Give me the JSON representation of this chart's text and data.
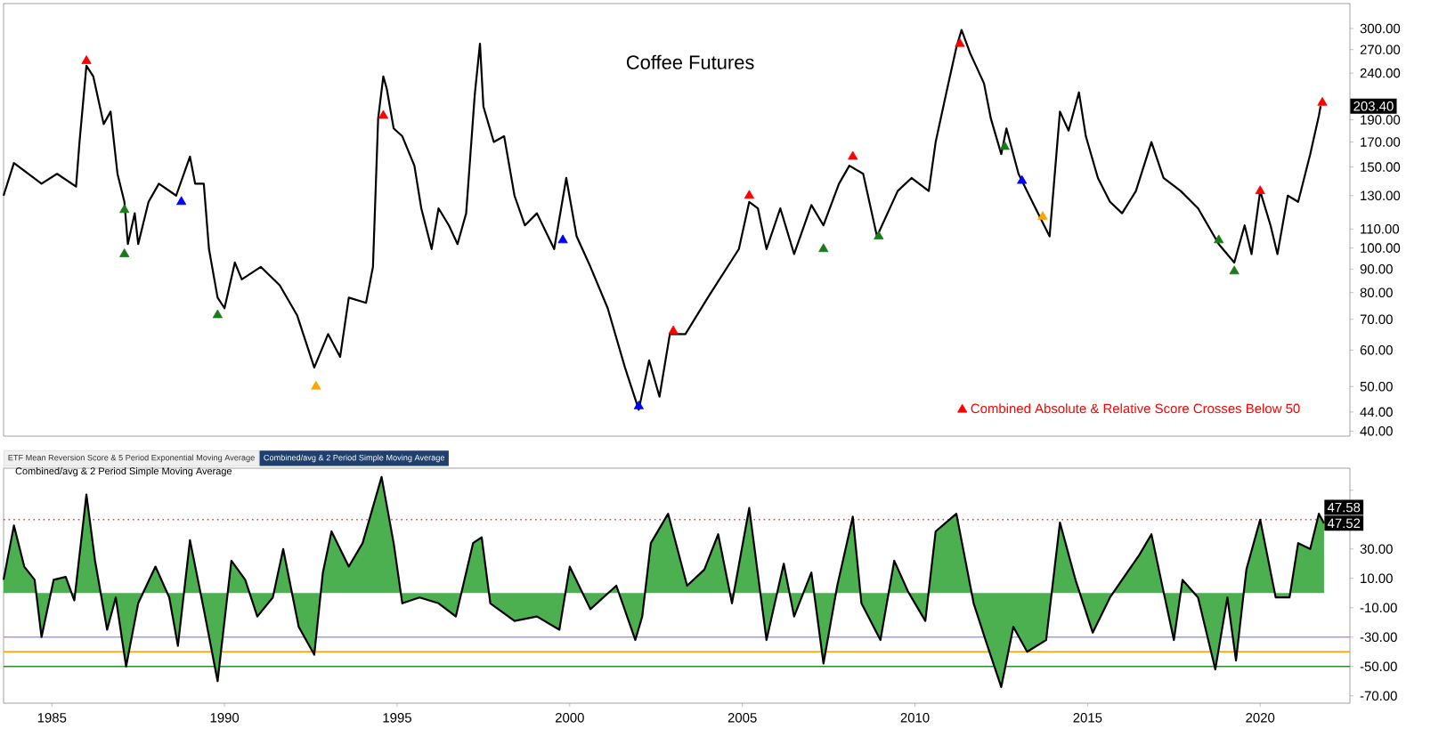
{
  "chart_data": [
    {
      "type": "line",
      "title": "Coffee Futures",
      "log": true,
      "xlim": [
        1983.6,
        2022.6
      ],
      "ylim": [
        39,
        340
      ],
      "tick_labels": "y",
      "legend": "bottom right",
      "yticks": [
        {
          "value": 300,
          "label": "300.00"
        },
        {
          "value": 270,
          "label": "270.00"
        },
        {
          "value": 240,
          "label": "240.00"
        },
        {
          "value": 210,
          "label": null
        },
        {
          "value": 190,
          "label": "190.00"
        },
        {
          "value": 170,
          "label": "170.00"
        },
        {
          "value": 150,
          "label": "150.00"
        },
        {
          "value": 130,
          "label": "130.00"
        },
        {
          "value": 110,
          "label": "110.00"
        },
        {
          "value": 100,
          "label": "100.00"
        },
        {
          "value": 90,
          "label": "90.00"
        },
        {
          "value": 80,
          "label": "80.00"
        },
        {
          "value": 70,
          "label": "70.00"
        },
        {
          "value": 60,
          "label": "60.00"
        },
        {
          "value": 50,
          "label": "50.00"
        },
        {
          "value": 44,
          "label": "44.00"
        },
        {
          "value": 40,
          "label": "40.00"
        }
      ],
      "annotations": [
        {
          "text": "203.40",
          "y": 203.4
        }
      ],
      "x": [
        1983.6,
        1983.9,
        1984.7,
        1985.15,
        1985.7,
        1985.8,
        1986.0,
        1986.2,
        1986.5,
        1986.7,
        1986.9,
        1987.1,
        1987.2,
        1987.4,
        1987.5,
        1987.8,
        1988.1,
        1988.6,
        1989.0,
        1989.15,
        1989.4,
        1989.55,
        1989.8,
        1990.0,
        1990.3,
        1990.5,
        1991.05,
        1991.6,
        1992.1,
        1992.6,
        1993.0,
        1993.35,
        1993.6,
        1994.1,
        1994.3,
        1994.45,
        1994.6,
        1994.7,
        1994.9,
        1995.15,
        1995.5,
        1995.7,
        1996.0,
        1996.2,
        1996.5,
        1996.75,
        1997.0,
        1997.25,
        1997.4,
        1997.5,
        1997.8,
        1998.1,
        1998.4,
        1998.7,
        1999.05,
        1999.55,
        1999.9,
        2000.2,
        2000.6,
        2001.1,
        2001.6,
        2002.0,
        2002.3,
        2002.6,
        2002.9,
        2003.35,
        2004.0,
        2004.9,
        2005.2,
        2005.45,
        2005.7,
        2006.1,
        2006.5,
        2007.0,
        2007.35,
        2007.8,
        2008.1,
        2008.5,
        2008.9,
        2009.5,
        2009.9,
        2010.4,
        2010.6,
        2010.9,
        2011.2,
        2011.35,
        2011.6,
        2012.0,
        2012.2,
        2012.5,
        2012.65,
        2013.0,
        2013.4,
        2013.9,
        2014.2,
        2014.45,
        2014.75,
        2014.95,
        2015.3,
        2015.65,
        2016.0,
        2016.4,
        2016.85,
        2017.2,
        2017.7,
        2018.2,
        2018.8,
        2019.25,
        2019.55,
        2019.75,
        2020.0,
        2020.3,
        2020.5,
        2020.8,
        2021.1,
        2021.45,
        2021.7,
        2021.75
      ],
      "series": [
        {
          "color": "#000000",
          "values": [
            130,
            153,
            138,
            145,
            136,
            170,
            249,
            236,
            186,
            198,
            145,
            126,
            102,
            119,
            102,
            126,
            138,
            130,
            158,
            138,
            138,
            99.5,
            78,
            74,
            93,
            85.5,
            91,
            83,
            71.5,
            55,
            65,
            58,
            78,
            76,
            91,
            191,
            236,
            222,
            182,
            175,
            151,
            122,
            99.5,
            122,
            112,
            102,
            119,
            216,
            278,
            203,
            170,
            175,
            130,
            112,
            119,
            99.5,
            142,
            106,
            91,
            74,
            55,
            44.5,
            57,
            47.5,
            65,
            65,
            78,
            99.5,
            126,
            122,
            99.5,
            122,
            97,
            124,
            112,
            138,
            151,
            145,
            106,
            133,
            142,
            133,
            170,
            216,
            273,
            298,
            265,
            228,
            191,
            160,
            182,
            145,
            126,
            106,
            198,
            180,
            218,
            175,
            142,
            126,
            119,
            133,
            170,
            142,
            133,
            122,
            102,
            93,
            112,
            97,
            133,
            112,
            97,
            130,
            126,
            160,
            194,
            203.4
          ]
        },
        {
          "type": "scatter",
          "name": "Combined Absolute & Relative Score Crosses Below 50",
          "color": "#ff0000",
          "marker": "triangle",
          "x": [
            1986.0,
            1994.6,
            2003.0,
            2005.2,
            2008.2,
            2011.3,
            2020.0,
            2021.8
          ],
          "values": [
            255,
            194,
            66,
            130,
            158,
            278,
            133,
            207
          ]
        },
        {
          "type": "scatter",
          "color": "#1b7a1b",
          "marker": "triangle",
          "x": [
            1987.1,
            1987.1,
            1989.8,
            2007.35,
            2008.95,
            2012.6,
            2018.8,
            2019.25
          ],
          "values": [
            121,
            97,
            71.5,
            99.5,
            106,
            166,
            104,
            89
          ]
        },
        {
          "type": "scatter",
          "color": "#0000ff",
          "marker": "triangle",
          "x": [
            1988.75,
            1999.8,
            2002.0,
            2013.1
          ],
          "values": [
            126,
            104,
            45.3,
            140
          ]
        },
        {
          "type": "scatter",
          "color": "#ffa500",
          "marker": "triangle",
          "x": [
            1992.65,
            2013.7
          ],
          "values": [
            50,
            117
          ]
        }
      ]
    },
    {
      "type": "area",
      "title": "Combined/avg & 2 Period Simple Moving Average",
      "xlim": [
        1983.6,
        2022.6
      ],
      "ylim": [
        -75,
        85
      ],
      "xticks": [
        1985,
        1990,
        1995,
        2000,
        2005,
        2010,
        2015,
        2020
      ],
      "yticks": [
        {
          "value": 70,
          "label": null
        },
        {
          "value": 50,
          "label": null
        },
        {
          "value": 30,
          "label": "30.00"
        },
        {
          "value": 10,
          "label": "10.00"
        },
        {
          "value": -10,
          "label": "-10.00"
        },
        {
          "value": -30,
          "label": "-30.00"
        },
        {
          "value": -50,
          "label": "-50.00"
        },
        {
          "value": -70,
          "label": "-70.00"
        }
      ],
      "annotations": [
        "ETF Mean Reversion Score & 5 Period Exponential Moving Average",
        "Combined/avg & 2 Period Simple Moving Average",
        "47.58"
      ],
      "ref_lines": [
        {
          "axis": "y",
          "value": 50,
          "color": "#ff3333",
          "line_style": "dotted"
        },
        {
          "axis": "y",
          "value": -30,
          "color": "#9999ff"
        },
        {
          "axis": "y",
          "value": -40,
          "color": "#ff9900"
        },
        {
          "axis": "y",
          "value": -50,
          "color": "#2e8b2e"
        }
      ],
      "x": [
        1983.6,
        1983.9,
        1984.2,
        1984.5,
        1984.7,
        1985.05,
        1985.4,
        1985.65,
        1986.0,
        1986.25,
        1986.6,
        1986.85,
        1987.15,
        1987.5,
        1988.0,
        1988.4,
        1988.65,
        1989.0,
        1989.4,
        1989.8,
        1990.2,
        1990.6,
        1990.95,
        1991.4,
        1991.7,
        1992.15,
        1992.6,
        1992.85,
        1993.1,
        1993.6,
        1994.0,
        1994.55,
        1994.9,
        1995.15,
        1995.65,
        1996.2,
        1996.7,
        1997.2,
        1997.45,
        1997.7,
        1998.4,
        1999.05,
        1999.7,
        2000.0,
        2000.6,
        2001.35,
        2001.9,
        2002.1,
        2002.35,
        2002.85,
        2003.4,
        2003.9,
        2004.3,
        2004.7,
        2005.2,
        2005.7,
        2006.2,
        2006.5,
        2007.0,
        2007.35,
        2007.75,
        2008.2,
        2008.45,
        2009.0,
        2009.4,
        2009.8,
        2010.3,
        2010.6,
        2011.2,
        2011.7,
        2012.1,
        2012.5,
        2012.85,
        2013.25,
        2013.8,
        2014.2,
        2014.65,
        2015.15,
        2015.65,
        2016.0,
        2016.5,
        2016.85,
        2017.2,
        2017.5,
        2017.75,
        2018.2,
        2018.7,
        2019.05,
        2019.3,
        2019.6,
        2020.0,
        2020.45,
        2020.85,
        2021.1,
        2021.45,
        2021.7,
        2021.85
      ],
      "series": [
        {
          "color": "#4caf50",
          "value_labels": [
            null,
            null,
            null,
            null,
            null,
            null,
            null,
            null,
            null,
            null,
            null,
            null,
            null,
            null,
            null,
            null,
            null,
            null,
            null,
            null,
            null,
            null,
            null,
            null,
            null,
            null,
            null,
            null,
            null,
            null,
            null,
            null,
            null,
            null,
            null,
            null,
            null,
            null,
            null,
            null,
            null,
            null,
            null,
            null,
            null,
            null,
            null,
            null,
            null,
            null,
            null,
            null,
            null,
            null,
            null,
            null,
            null,
            null,
            null,
            null,
            null,
            null,
            null,
            null,
            null,
            null,
            null,
            null,
            null,
            null,
            null,
            null,
            null,
            null,
            null,
            null,
            null,
            null,
            null,
            null,
            null,
            null,
            null,
            null,
            null,
            null,
            null,
            null,
            null,
            null,
            null,
            null,
            null,
            null,
            null,
            null,
            "47.52"
          ],
          "values": [
            9,
            46,
            18,
            9,
            -30,
            9,
            11,
            -5,
            67,
            22,
            -25,
            -3,
            -50,
            -7,
            18,
            -3,
            -36,
            36,
            -11,
            -60,
            22,
            9,
            -16,
            -3,
            30,
            -23,
            -42,
            14,
            42,
            18,
            34,
            79,
            34,
            -7,
            -3,
            -7,
            -16,
            34,
            38,
            -7,
            -19,
            -16,
            -25,
            18,
            -11,
            5,
            -32,
            -16,
            34,
            54,
            5,
            16,
            40,
            -7,
            58,
            -32,
            20,
            -16,
            14,
            -48,
            5,
            52,
            -7,
            -32,
            22,
            1,
            -19,
            42,
            54,
            -7,
            -36,
            -64,
            -23,
            -40,
            -32,
            48,
            9,
            -27,
            -3,
            9,
            26,
            40,
            1,
            -32,
            9,
            -3,
            -52,
            -3,
            -46,
            16,
            50,
            -3,
            -3,
            34,
            30,
            54,
            47.52
          ]
        }
      ]
    }
  ]
}
